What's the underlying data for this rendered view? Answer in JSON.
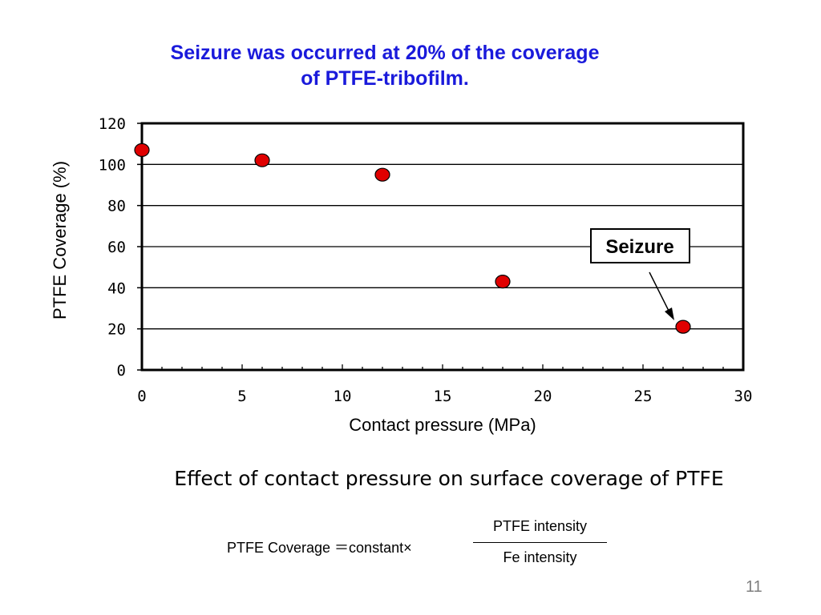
{
  "headline": {
    "line1": "Seizure was occurred at 20% of the coverage",
    "line2": "of PTFE-tribofilm."
  },
  "chart_data": {
    "type": "scatter",
    "title": "",
    "xlabel": "Contact pressure (MPa)",
    "ylabel": "PTFE Coverage (%)",
    "xlim": [
      0,
      30
    ],
    "ylim": [
      0,
      120
    ],
    "xticks": [
      0,
      5,
      10,
      15,
      20,
      25,
      30
    ],
    "yticks": [
      0,
      20,
      40,
      60,
      80,
      100,
      120
    ],
    "grid": "horizontal",
    "legend": "none",
    "series": [
      {
        "x": [
          0,
          6,
          12,
          18,
          27
        ],
        "y": [
          107,
          102,
          95,
          43,
          21
        ],
        "color": "#e00000"
      }
    ],
    "annotations": [
      {
        "text": "Seizure",
        "x": 27,
        "y": 21
      }
    ]
  },
  "caption": "Effect of contact pressure on surface coverage of PTFE",
  "formula": {
    "lhs": "PTFE Coverage ＝constant×",
    "numerator": "PTFE intensity",
    "denominator": "Fe intensity"
  },
  "page_number": "11"
}
